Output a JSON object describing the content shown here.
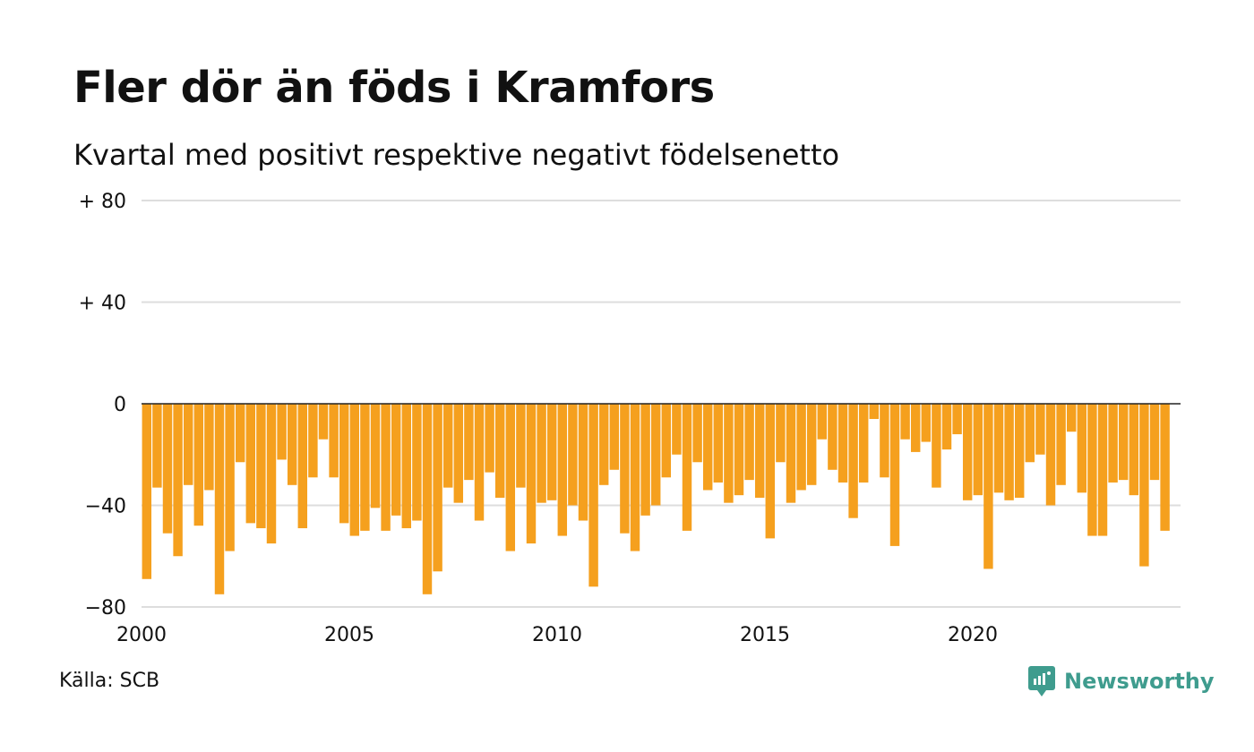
{
  "title": "Fler dör än föds i Kramfors",
  "subtitle": "Kvartal med positivt respektive negativt födelsenetto",
  "source": "Källa: SCB",
  "brand": {
    "name": "Newsworthy",
    "icon": "newsworthy-logo-icon"
  },
  "colors": {
    "bar": "#f5a01e",
    "grid": "#dddddd",
    "zero": "#222222",
    "brand": "#3f9c8e"
  },
  "chart_data": {
    "type": "bar",
    "x_start": 2000,
    "x_end": 2025,
    "periods_per_year": 4,
    "ylim": [
      -80,
      80
    ],
    "yticks": [
      {
        "value": 80,
        "label": "+ 80"
      },
      {
        "value": 40,
        "label": "+ 40"
      },
      {
        "value": 0,
        "label": "0"
      },
      {
        "value": -40,
        "label": "−40"
      },
      {
        "value": -80,
        "label": "−80"
      }
    ],
    "xticks": [
      {
        "value": 2000,
        "label": "2000"
      },
      {
        "value": 2005,
        "label": "2005"
      },
      {
        "value": 2010,
        "label": "2010"
      },
      {
        "value": 2015,
        "label": "2015"
      },
      {
        "value": 2020,
        "label": "2020"
      }
    ],
    "values": [
      -69,
      -33,
      -51,
      -60,
      -32,
      -48,
      -34,
      -75,
      -58,
      -23,
      -47,
      -49,
      -55,
      -22,
      -32,
      -49,
      -29,
      -14,
      -29,
      -47,
      -52,
      -50,
      -41,
      -50,
      -44,
      -49,
      -46,
      -75,
      -66,
      -33,
      -39,
      -30,
      -46,
      -27,
      -37,
      -58,
      -33,
      -55,
      -39,
      -38,
      -52,
      -40,
      -46,
      -72,
      -32,
      -26,
      -51,
      -58,
      -44,
      -40,
      -29,
      -20,
      -50,
      -23,
      -34,
      -31,
      -39,
      -36,
      -30,
      -37,
      -53,
      -23,
      -39,
      -34,
      -32,
      -14,
      -26,
      -31,
      -45,
      -31,
      -6,
      -29,
      -56,
      -14,
      -19,
      -15,
      -33,
      -18,
      -12,
      -38,
      -36,
      -65,
      -35,
      -38,
      -37,
      -23,
      -20,
      -40,
      -32,
      -11,
      -35,
      -52,
      -52,
      -31,
      -30,
      -36,
      -64,
      -30,
      -50
    ]
  }
}
